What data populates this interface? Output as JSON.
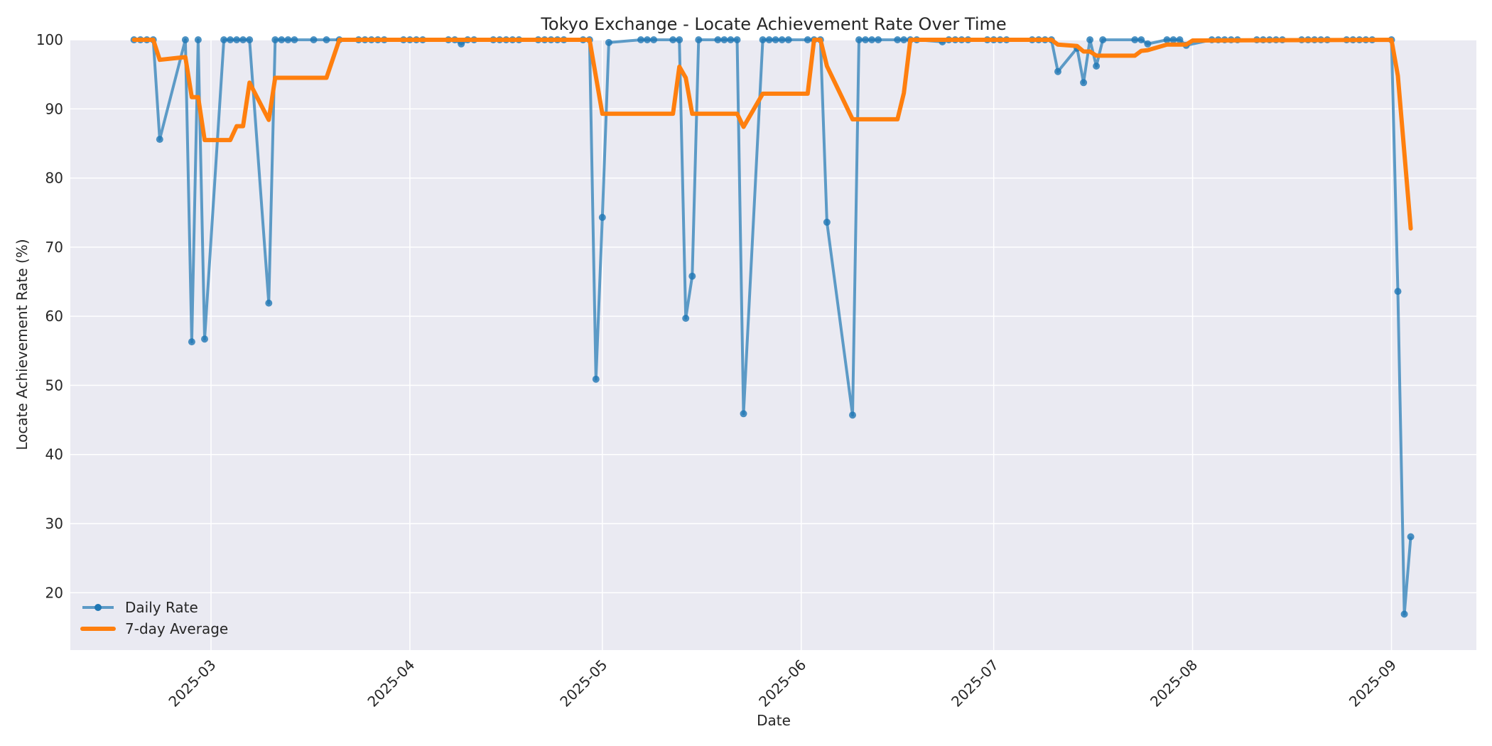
{
  "chart_data": {
    "type": "line",
    "title": "Tokyo Exchange - Locate Achievement Rate Over Time",
    "xlabel": "Date",
    "ylabel": "Locate Achievement Rate (%)",
    "ylim": [
      11.7,
      100
    ],
    "yticks": [
      20,
      30,
      40,
      50,
      60,
      70,
      80,
      90,
      100
    ],
    "xticks": [
      "2025-03",
      "2025-04",
      "2025-05",
      "2025-06",
      "2025-07",
      "2025-08",
      "2025-09"
    ],
    "xlim": [
      "2025-02-10",
      "2025-09-17"
    ],
    "grid": true,
    "legend_position": "lower left",
    "colors": {
      "daily": "#1f77b4",
      "avg": "#ff7f0e",
      "background": "#eaeaf2",
      "grid": "#ffffff"
    },
    "series": [
      {
        "name": "Daily Rate",
        "style": "line+markers",
        "points": [
          [
            "2025-02-17",
            100
          ],
          [
            "2025-02-18",
            100
          ],
          [
            "2025-02-19",
            100
          ],
          [
            "2025-02-20",
            100
          ],
          [
            "2025-02-21",
            85.6
          ],
          [
            "2025-02-25",
            100
          ],
          [
            "2025-02-26",
            56.3
          ],
          [
            "2025-02-27",
            100
          ],
          [
            "2025-02-28",
            56.7
          ],
          [
            "2025-03-03",
            100
          ],
          [
            "2025-03-04",
            100
          ],
          [
            "2025-03-05",
            100
          ],
          [
            "2025-03-06",
            100
          ],
          [
            "2025-03-07",
            100
          ],
          [
            "2025-03-10",
            61.9
          ],
          [
            "2025-03-11",
            100
          ],
          [
            "2025-03-12",
            100
          ],
          [
            "2025-03-13",
            100
          ],
          [
            "2025-03-14",
            100
          ],
          [
            "2025-03-17",
            100
          ],
          [
            "2025-03-19",
            100
          ],
          [
            "2025-03-21",
            100
          ],
          [
            "2025-03-24",
            100
          ],
          [
            "2025-03-25",
            100
          ],
          [
            "2025-03-26",
            100
          ],
          [
            "2025-03-27",
            100
          ],
          [
            "2025-03-28",
            100
          ],
          [
            "2025-03-31",
            100
          ],
          [
            "2025-04-01",
            100
          ],
          [
            "2025-04-02",
            100
          ],
          [
            "2025-04-03",
            100
          ],
          [
            "2025-04-07",
            100
          ],
          [
            "2025-04-08",
            100
          ],
          [
            "2025-04-09",
            99.4
          ],
          [
            "2025-04-10",
            100
          ],
          [
            "2025-04-11",
            100
          ],
          [
            "2025-04-14",
            100
          ],
          [
            "2025-04-15",
            100
          ],
          [
            "2025-04-16",
            100
          ],
          [
            "2025-04-17",
            100
          ],
          [
            "2025-04-18",
            100
          ],
          [
            "2025-04-21",
            100
          ],
          [
            "2025-04-22",
            100
          ],
          [
            "2025-04-23",
            100
          ],
          [
            "2025-04-24",
            100
          ],
          [
            "2025-04-25",
            100
          ],
          [
            "2025-04-28",
            100
          ],
          [
            "2025-04-29",
            100
          ],
          [
            "2025-04-30",
            50.9
          ],
          [
            "2025-05-01",
            74.3
          ],
          [
            "2025-05-02",
            99.6
          ],
          [
            "2025-05-07",
            100
          ],
          [
            "2025-05-08",
            100
          ],
          [
            "2025-05-09",
            100
          ],
          [
            "2025-05-12",
            100
          ],
          [
            "2025-05-13",
            100
          ],
          [
            "2025-05-14",
            59.7
          ],
          [
            "2025-05-15",
            65.8
          ],
          [
            "2025-05-16",
            100
          ],
          [
            "2025-05-19",
            100
          ],
          [
            "2025-05-20",
            100
          ],
          [
            "2025-05-21",
            100
          ],
          [
            "2025-05-22",
            100
          ],
          [
            "2025-05-23",
            45.9
          ],
          [
            "2025-05-26",
            100
          ],
          [
            "2025-05-27",
            100
          ],
          [
            "2025-05-28",
            100
          ],
          [
            "2025-05-29",
            100
          ],
          [
            "2025-05-30",
            100
          ],
          [
            "2025-06-02",
            100
          ],
          [
            "2025-06-03",
            100
          ],
          [
            "2025-06-04",
            100
          ],
          [
            "2025-06-05",
            73.6
          ],
          [
            "2025-06-09",
            45.7
          ],
          [
            "2025-06-10",
            100
          ],
          [
            "2025-06-11",
            100
          ],
          [
            "2025-06-12",
            100
          ],
          [
            "2025-06-13",
            100
          ],
          [
            "2025-06-16",
            100
          ],
          [
            "2025-06-17",
            100
          ],
          [
            "2025-06-18",
            100
          ],
          [
            "2025-06-19",
            100
          ],
          [
            "2025-06-23",
            99.7
          ],
          [
            "2025-06-24",
            100
          ],
          [
            "2025-06-25",
            100
          ],
          [
            "2025-06-26",
            100
          ],
          [
            "2025-06-27",
            100
          ],
          [
            "2025-06-30",
            100
          ],
          [
            "2025-07-01",
            100
          ],
          [
            "2025-07-02",
            100
          ],
          [
            "2025-07-03",
            100
          ],
          [
            "2025-07-07",
            100
          ],
          [
            "2025-07-08",
            100
          ],
          [
            "2025-07-09",
            100
          ],
          [
            "2025-07-10",
            100
          ],
          [
            "2025-07-11",
            95.4
          ],
          [
            "2025-07-14",
            98.8
          ],
          [
            "2025-07-15",
            93.8
          ],
          [
            "2025-07-16",
            100
          ],
          [
            "2025-07-17",
            96.2
          ],
          [
            "2025-07-18",
            100
          ],
          [
            "2025-07-23",
            100
          ],
          [
            "2025-07-24",
            100
          ],
          [
            "2025-07-25",
            99.4
          ],
          [
            "2025-07-28",
            100
          ],
          [
            "2025-07-29",
            100
          ],
          [
            "2025-07-30",
            100
          ],
          [
            "2025-07-31",
            99.2
          ],
          [
            "2025-08-04",
            100
          ],
          [
            "2025-08-05",
            100
          ],
          [
            "2025-08-06",
            100
          ],
          [
            "2025-08-07",
            100
          ],
          [
            "2025-08-08",
            100
          ],
          [
            "2025-08-11",
            100
          ],
          [
            "2025-08-12",
            100
          ],
          [
            "2025-08-13",
            100
          ],
          [
            "2025-08-14",
            100
          ],
          [
            "2025-08-15",
            100
          ],
          [
            "2025-08-18",
            100
          ],
          [
            "2025-08-19",
            100
          ],
          [
            "2025-08-20",
            100
          ],
          [
            "2025-08-21",
            100
          ],
          [
            "2025-08-22",
            100
          ],
          [
            "2025-08-25",
            100
          ],
          [
            "2025-08-26",
            100
          ],
          [
            "2025-08-27",
            100
          ],
          [
            "2025-08-28",
            100
          ],
          [
            "2025-08-29",
            100
          ],
          [
            "2025-09-01",
            100
          ],
          [
            "2025-09-02",
            63.6
          ],
          [
            "2025-09-03",
            16.9
          ],
          [
            "2025-09-04",
            28.1
          ]
        ]
      },
      {
        "name": "7-day Average",
        "style": "line",
        "points": [
          [
            "2025-02-17",
            100
          ],
          [
            "2025-02-20",
            100
          ],
          [
            "2025-02-21",
            97.1
          ],
          [
            "2025-02-25",
            97.5
          ],
          [
            "2025-02-26",
            91.7
          ],
          [
            "2025-02-27",
            91.7
          ],
          [
            "2025-02-28",
            85.5
          ],
          [
            "2025-03-04",
            85.5
          ],
          [
            "2025-03-05",
            87.5
          ],
          [
            "2025-03-06",
            87.5
          ],
          [
            "2025-03-07",
            93.8
          ],
          [
            "2025-03-10",
            88.4
          ],
          [
            "2025-03-11",
            94.5
          ],
          [
            "2025-03-19",
            94.5
          ],
          [
            "2025-03-21",
            100
          ],
          [
            "2025-04-29",
            100
          ],
          [
            "2025-05-01",
            89.3
          ],
          [
            "2025-05-12",
            89.3
          ],
          [
            "2025-05-13",
            96.1
          ],
          [
            "2025-05-14",
            94.5
          ],
          [
            "2025-05-15",
            89.3
          ],
          [
            "2025-05-22",
            89.3
          ],
          [
            "2025-05-23",
            87.4
          ],
          [
            "2025-05-26",
            92.2
          ],
          [
            "2025-06-02",
            92.2
          ],
          [
            "2025-06-03",
            100
          ],
          [
            "2025-06-04",
            100
          ],
          [
            "2025-06-05",
            96.2
          ],
          [
            "2025-06-09",
            88.5
          ],
          [
            "2025-06-16",
            88.5
          ],
          [
            "2025-06-17",
            92.3
          ],
          [
            "2025-06-18",
            100
          ],
          [
            "2025-07-10",
            100
          ],
          [
            "2025-07-11",
            99.3
          ],
          [
            "2025-07-14",
            99.1
          ],
          [
            "2025-07-15",
            98.3
          ],
          [
            "2025-07-16",
            98.3
          ],
          [
            "2025-07-17",
            97.7
          ],
          [
            "2025-07-23",
            97.7
          ],
          [
            "2025-07-24",
            98.4
          ],
          [
            "2025-07-25",
            98.5
          ],
          [
            "2025-07-28",
            99.3
          ],
          [
            "2025-07-31",
            99.3
          ],
          [
            "2025-08-01",
            99.9
          ],
          [
            "2025-09-01",
            100
          ],
          [
            "2025-09-02",
            94.8
          ],
          [
            "2025-09-04",
            72.7
          ]
        ]
      }
    ]
  }
}
